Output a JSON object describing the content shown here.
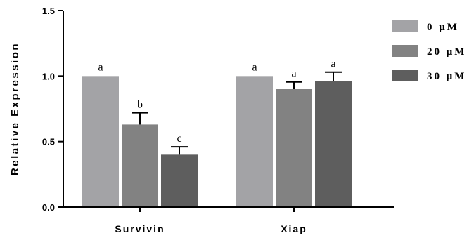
{
  "chart_data": {
    "type": "bar",
    "title": "",
    "xlabel": "",
    "ylabel": "Relative Expression",
    "ylim": [
      0.0,
      1.5
    ],
    "yticks": [
      "0.0",
      "0.5",
      "1.0",
      "1.5"
    ],
    "categories": [
      "Survivin",
      "Xiap"
    ],
    "grid": false,
    "legend_position": "top-right",
    "series": [
      {
        "name": "0 μM",
        "color": "#a3a3a6",
        "values": [
          1.0,
          1.0
        ],
        "errors": [
          0.0,
          0.0
        ],
        "labels": [
          "a",
          "a"
        ]
      },
      {
        "name": "20 μM",
        "color": "#828282",
        "values": [
          0.63,
          0.9
        ],
        "errors": [
          0.09,
          0.055
        ],
        "labels": [
          "b",
          "a"
        ]
      },
      {
        "name": "30 μM",
        "color": "#5e5e5e",
        "values": [
          0.4,
          0.96
        ],
        "errors": [
          0.06,
          0.07
        ],
        "labels": [
          "c",
          "a"
        ]
      }
    ]
  }
}
